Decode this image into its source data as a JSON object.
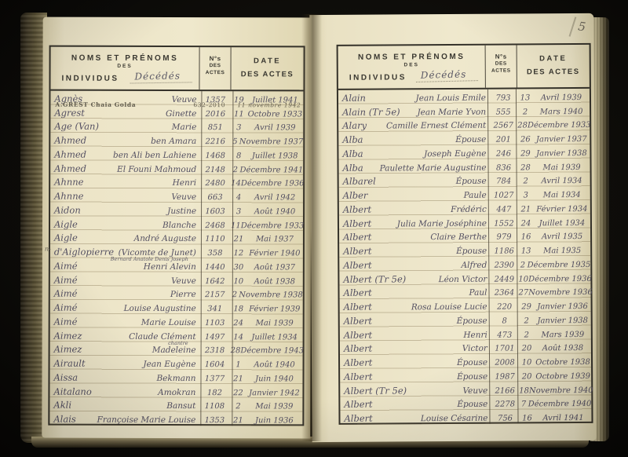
{
  "document": {
    "type": "death-register-index-spread",
    "page_corner_number": "5",
    "ink_color": "#545062",
    "pencil_color": "#5e594b",
    "paper_color": "#efe8cc"
  },
  "header": {
    "col1": {
      "line1": "NOMS ET PRÉNOMS",
      "line2": "DES",
      "line3": "INDIVIDUS",
      "handwritten": "Décédés"
    },
    "col2": {
      "line1": "N°s",
      "line2": "DES",
      "line3": "ACTES"
    },
    "col3": {
      "line1": "DATE",
      "line2": "DES ACTES"
    }
  },
  "left_page": {
    "margin_note": "n-",
    "insert": {
      "name": "A.GREST Chaia Golda",
      "num": "632-2010",
      "date": "11 novembre 1942"
    },
    "rows": [
      {
        "name": "Agnès",
        "given": "Veuve",
        "num": "1357",
        "day": "19",
        "date": "Juillet 1941"
      },
      {
        "name": "Agrest",
        "given": "Ginette",
        "num": "2016",
        "day": "11",
        "date": "Octobre 1933"
      },
      {
        "name": "Age (Van)",
        "given": "Marie",
        "num": "851",
        "day": "3",
        "date": "Avril 1939"
      },
      {
        "name": "Ahmed",
        "given": "ben Amara",
        "num": "2216",
        "day": "5",
        "date": "Novembre 1937"
      },
      {
        "name": "Ahmed",
        "given": "ben Ali ben Lahiene",
        "num": "1468",
        "day": "8",
        "date": "Juillet 1938"
      },
      {
        "name": "Ahmed",
        "given": "El Founi Mahmoud",
        "num": "2148",
        "day": "2",
        "date": "Décembre 1941"
      },
      {
        "name": "Ahnne",
        "given": "Henri",
        "num": "2480",
        "day": "14",
        "date": "Décembre 1936"
      },
      {
        "name": "Ahnne",
        "given": "Veuve",
        "num": "663",
        "day": "4",
        "date": "Avril 1942"
      },
      {
        "name": "Aidon",
        "given": "Justine",
        "num": "1603",
        "day": "3",
        "date": "Août 1940"
      },
      {
        "name": "Aigle",
        "given": "Blanche",
        "num": "2468",
        "day": "11",
        "date": "Décembre 1933"
      },
      {
        "name": "Aigle",
        "given": "André Auguste",
        "num": "1110",
        "day": "21",
        "date": "Mai 1937"
      },
      {
        "name": "d'Aiglopierre",
        "given": "(Vicomte de Junet)",
        "num": "358",
        "day": "12",
        "date": "Février 1940",
        "sub": "Bernard Anatole Denis Joseph"
      },
      {
        "name": "Aimé",
        "given": "Henri Alevin",
        "num": "1440",
        "day": "30",
        "date": "Août 1937"
      },
      {
        "name": "Aimé",
        "given": "Veuve",
        "num": "1642",
        "day": "10",
        "date": "Août 1938"
      },
      {
        "name": "Aimé",
        "given": "Pierre",
        "num": "2157",
        "day": "2",
        "date": "Novembre 1938"
      },
      {
        "name": "Aimé",
        "given": "Louise Augustine",
        "num": "341",
        "day": "18",
        "date": "Février 1939"
      },
      {
        "name": "Aimé",
        "given": "Marie Louise",
        "num": "1103",
        "day": "24",
        "date": "Mai 1939"
      },
      {
        "name": "Aimez",
        "given": "Claude Clément",
        "num": "1497",
        "day": "14",
        "date": "Juillet 1934",
        "sub": "chantre"
      },
      {
        "name": "Aimez",
        "given": "Madeleine",
        "num": "2318",
        "day": "28",
        "date": "Décembre 1943"
      },
      {
        "name": "Airault",
        "given": "Jean Eugène",
        "num": "1604",
        "day": "1",
        "date": "Août 1940"
      },
      {
        "name": "Aissa",
        "given": "Bekmann",
        "num": "1377",
        "day": "21",
        "date": "Juin 1940"
      },
      {
        "name": "Aitalano",
        "given": "Amokran",
        "num": "182",
        "day": "22",
        "date": "Janvier 1942"
      },
      {
        "name": "Akli",
        "given": "Bansut",
        "num": "1108",
        "day": "2",
        "date": "Mai 1939"
      },
      {
        "name": "Alais",
        "given": "Françoise Marie Louise",
        "num": "1353",
        "day": "21",
        "date": "Juin 1936"
      }
    ]
  },
  "right_page": {
    "rows": [
      {
        "name": "Alain",
        "given": "Jean Louis Emile",
        "num": "793",
        "day": "13",
        "date": "Avril 1939"
      },
      {
        "name": "Alain (Tr 5e)",
        "given": "Jean Marie Yvon",
        "num": "555",
        "day": "2",
        "date": "Mars 1940"
      },
      {
        "name": "Alary",
        "given": "Camille Ernest Clément",
        "num": "2567",
        "day": "28",
        "date": "Décembre 1933"
      },
      {
        "name": "Alba",
        "given": "Épouse",
        "num": "201",
        "day": "26",
        "date": "Janvier 1937"
      },
      {
        "name": "Alba",
        "given": "Joseph Eugène",
        "num": "246",
        "day": "29",
        "date": "Janvier 1938"
      },
      {
        "name": "Alba",
        "given": "Paulette Marie Augustine",
        "num": "836",
        "day": "28",
        "date": "Mai 1939"
      },
      {
        "name": "Albarel",
        "given": "Épouse",
        "num": "784",
        "day": "2",
        "date": "Avril 1934"
      },
      {
        "name": "Alber",
        "given": "Paule",
        "num": "1027",
        "day": "3",
        "date": "Mai 1934"
      },
      {
        "name": "Albert",
        "given": "Frédéric",
        "num": "447",
        "day": "21",
        "date": "Février 1934"
      },
      {
        "name": "Albert",
        "given": "Julia Marie Joséphine",
        "num": "1552",
        "day": "24",
        "date": "Juillet 1934"
      },
      {
        "name": "Albert",
        "given": "Claire Berthe",
        "num": "979",
        "day": "16",
        "date": "Avril 1935"
      },
      {
        "name": "Albert",
        "given": "Épouse",
        "num": "1186",
        "day": "13",
        "date": "Mai 1935"
      },
      {
        "name": "Albert",
        "given": "Alfred",
        "num": "2390",
        "day": "2",
        "date": "Décembre 1935"
      },
      {
        "name": "Albert (Tr 5e)",
        "given": "Léon Victor",
        "num": "2449",
        "day": "10",
        "date": "Décembre 1936"
      },
      {
        "name": "Albert",
        "given": "Paul",
        "num": "2364",
        "day": "27",
        "date": "Novembre 1936"
      },
      {
        "name": "Albert",
        "given": "Rosa Louise Lucie",
        "num": "220",
        "day": "29",
        "date": "Janvier 1936"
      },
      {
        "name": "Albert",
        "given": "Épouse",
        "num": "8",
        "day": "2",
        "date": "Janvier 1938"
      },
      {
        "name": "Albert",
        "given": "Henri",
        "num": "473",
        "day": "2",
        "date": "Mars 1939"
      },
      {
        "name": "Albert",
        "given": "Victor",
        "num": "1701",
        "day": "20",
        "date": "Août 1938"
      },
      {
        "name": "Albert",
        "given": "Épouse",
        "num": "2008",
        "day": "10",
        "date": "Octobre 1938"
      },
      {
        "name": "Albert",
        "given": "Épouse",
        "num": "1987",
        "day": "20",
        "date": "Octobre 1939"
      },
      {
        "name": "Albert (Tr 5e)",
        "given": "Veuve",
        "num": "2166",
        "day": "18",
        "date": "Novembre 1940"
      },
      {
        "name": "Albert",
        "given": "Épouse",
        "num": "2278",
        "day": "7",
        "date": "Décembre 1940"
      },
      {
        "name": "Albert",
        "given": "Louise Césarine",
        "num": "756",
        "day": "16",
        "date": "Avril 1941"
      }
    ]
  }
}
